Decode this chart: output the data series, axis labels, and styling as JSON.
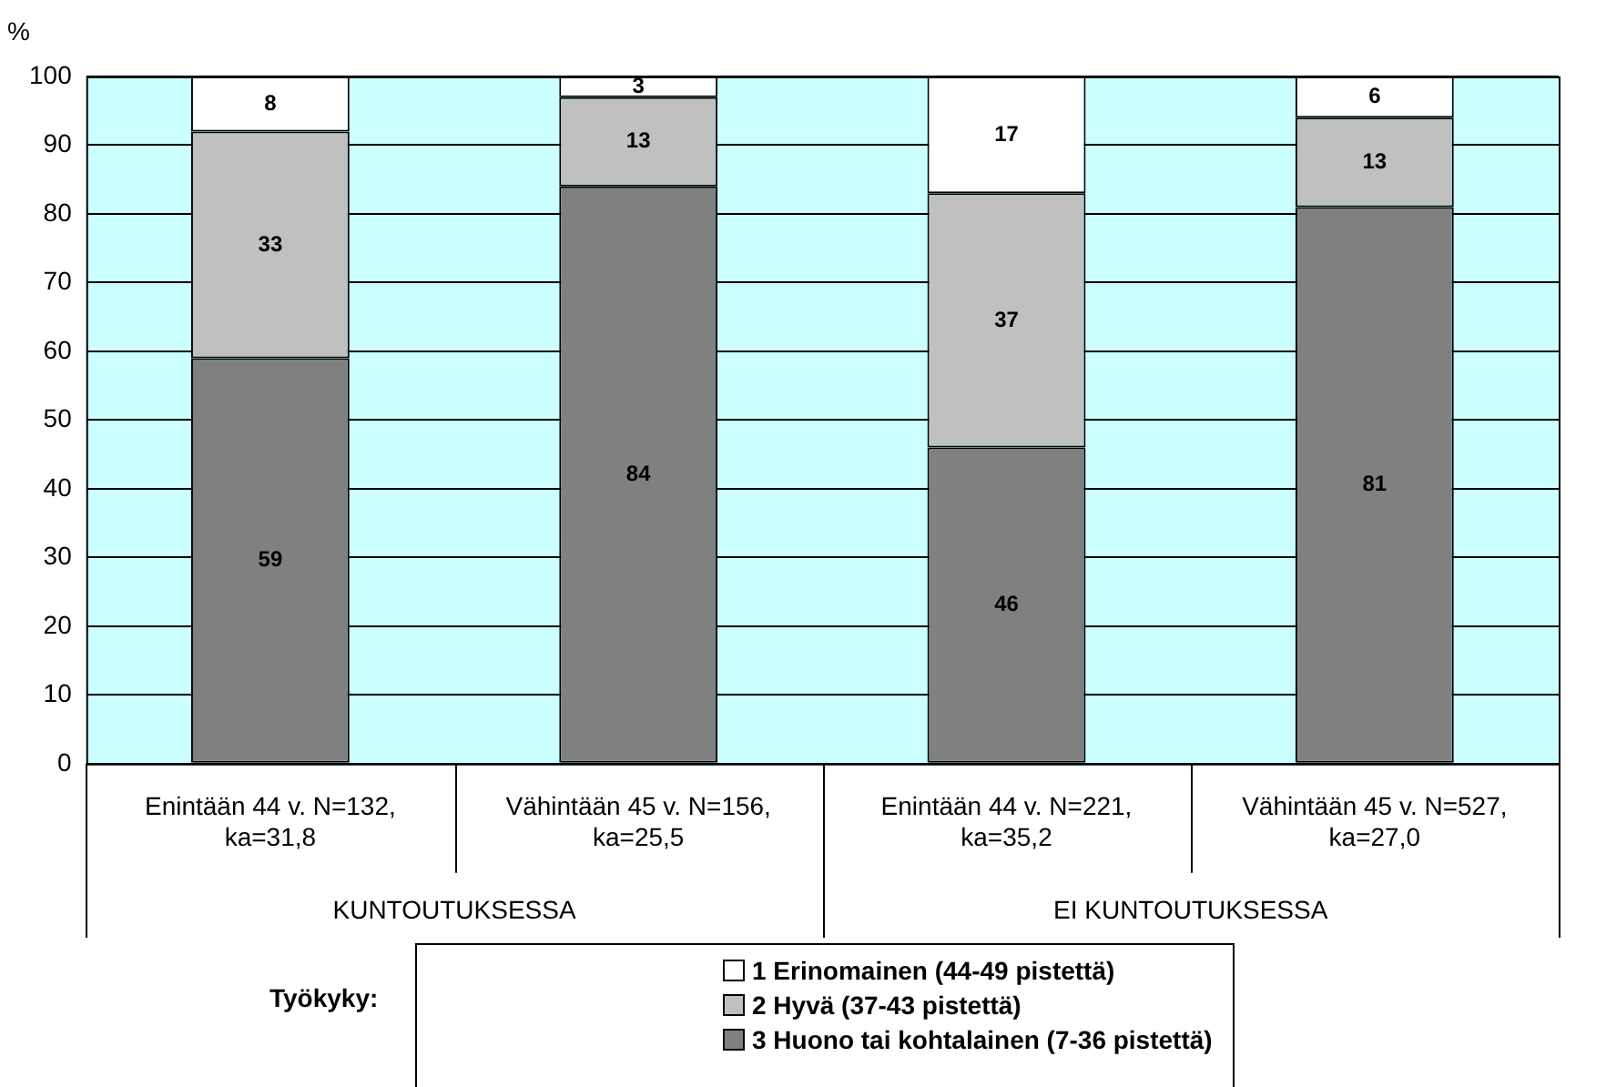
{
  "chart_data": {
    "type": "bar",
    "ylabel": "%",
    "legend_title": "Työkyky:",
    "categories": [
      "Enintään 44 v. N=132, ka=31,8",
      "Vähintään 45 v. N=156, ka=25,5",
      "Enintään 44 v. N=221, ka=35,2",
      "Vähintään 45 v. N=527, ka=27,0"
    ],
    "annotations": [
      "KUNTOUTUKSESSA",
      "EI KUNTOUTUKSESSA"
    ],
    "stacked": true,
    "data_labels": true,
    "grid": "y",
    "legend": "bottom",
    "ylim": [
      0,
      100
    ],
    "yticks": [
      0,
      10,
      20,
      30,
      40,
      50,
      60,
      70,
      80,
      90,
      100
    ],
    "series": [
      {
        "name": "3 Huono tai kohtalainen (7-36 pistettä)",
        "color": "#808080",
        "values": [
          59,
          84,
          46,
          81
        ]
      },
      {
        "name": "2 Hyvä (37-43 pistettä)",
        "color": "#c0c0c0",
        "values": [
          33,
          13,
          37,
          13
        ]
      },
      {
        "name": "1 Erinomainen (44-49 pistettä)",
        "color": "#ffffff",
        "values": [
          8,
          3,
          17,
          6
        ]
      }
    ]
  }
}
